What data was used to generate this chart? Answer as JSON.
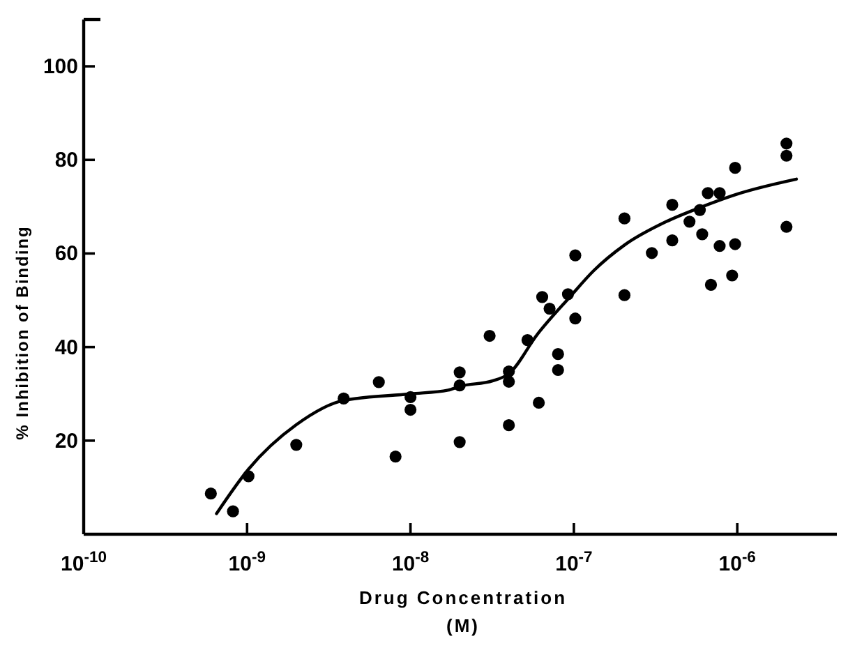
{
  "chart_data": {
    "type": "scatter",
    "xlabel": "Drug Concentration\n(M)",
    "ylabel": "% Inhibition of Binding",
    "log": "x",
    "grid": false,
    "xlim": [
      1e-10,
      4.4e-06
    ],
    "ylim": [
      0,
      110
    ],
    "xticks": [
      {
        "value": 1e-10,
        "label": "10$^{-10}$"
      },
      {
        "value": 1e-09,
        "label": "10$^{-9}$"
      },
      {
        "value": 1e-08,
        "label": "10$^{-8}$"
      },
      {
        "value": 1e-07,
        "label": "10$^{-7}$"
      },
      {
        "value": 1e-06,
        "label": "10$^{-6}$"
      }
    ],
    "yticks": [
      20,
      40,
      60,
      80,
      100
    ],
    "series": [
      {
        "marker": "circle",
        "color": "#000000",
        "x": [
          6e-10,
          8.2e-10,
          1.02e-09,
          2e-09,
          3.9e-09,
          6.4e-09,
          8.1e-09,
          1e-08,
          1e-08,
          2e-08,
          2e-08,
          2e-08,
          3.05e-08,
          4e-08,
          4e-08,
          4e-08,
          5.2e-08,
          6.1e-08,
          6.4e-08,
          7.1e-08,
          8e-08,
          8e-08,
          9.2e-08,
          1.02e-07,
          1.02e-07,
          2.04e-07,
          2.04e-07,
          3e-07,
          4e-07,
          4e-07,
          5.1e-07,
          5.9e-07,
          6.1e-07,
          6.6e-07,
          6.9e-07,
          7.8e-07,
          7.8e-07,
          9.3e-07,
          9.7e-07,
          9.7e-07,
          2e-06,
          2e-06,
          2e-06
        ],
        "values": [
          8.7,
          4.9,
          12.4,
          19.1,
          29,
          32.5,
          16.6,
          29.3,
          26.6,
          34.6,
          31.8,
          19.7,
          42.4,
          34.8,
          32.6,
          23.3,
          41.5,
          28.1,
          50.7,
          48.2,
          38.5,
          35.1,
          51.3,
          59.6,
          46.1,
          67.5,
          51.1,
          60.1,
          70.4,
          62.8,
          66.8,
          69.3,
          64.1,
          72.9,
          53.3,
          72.9,
          61.6,
          55.3,
          78.3,
          62,
          83.5,
          80.9,
          65.7
        ]
      },
      {
        "type": "line",
        "line_style": "solid",
        "color": "#000000",
        "x": [
          6.5e-10,
          1.02e-09,
          2e-09,
          3.9e-09,
          1e-08,
          1.7e-08,
          2e-08,
          3.2e-08,
          4e-08,
          6e-08,
          9.5e-08,
          1.32e-07,
          2.04e-07,
          3.67e-07,
          5.9e-07,
          1.02e-06,
          2.3e-06
        ],
        "values": [
          4.4,
          13.9,
          23.4,
          28.6,
          30,
          30.8,
          31.6,
          32.8,
          34.3,
          42.8,
          50.8,
          56.3,
          61.8,
          66.8,
          69.8,
          72.8,
          75.9
        ]
      }
    ]
  }
}
